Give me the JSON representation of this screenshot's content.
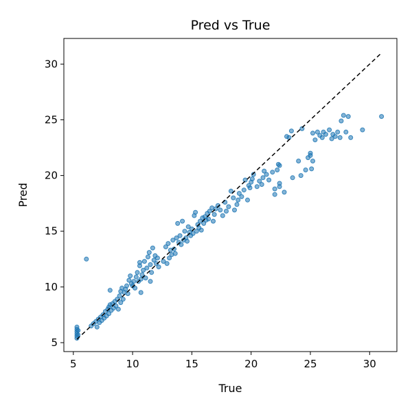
{
  "chart_data": {
    "type": "scatter",
    "title": "Pred vs True",
    "xlabel": "True",
    "ylabel": "Pred",
    "xlim": [
      4.2,
      32.3
    ],
    "ylim": [
      4.2,
      32.3
    ],
    "xticks": [
      5,
      10,
      15,
      20,
      25,
      30
    ],
    "yticks": [
      5,
      10,
      15,
      20,
      25,
      30
    ],
    "grid": false,
    "colors": {
      "points": "#1f77b4",
      "reference_line": "#000000"
    },
    "reference_line": {
      "style": "dashed",
      "from": [
        5.3,
        5.3
      ],
      "to": [
        31.0,
        31.0
      ]
    },
    "series": [
      {
        "points": [
          [
            5.3,
            5.4
          ],
          [
            5.3,
            5.6
          ],
          [
            5.3,
            5.8
          ],
          [
            5.3,
            6.0
          ],
          [
            5.3,
            6.2
          ],
          [
            5.3,
            6.4
          ],
          [
            5.4,
            5.7
          ],
          [
            5.4,
            6.1
          ],
          [
            6.1,
            12.5
          ],
          [
            6.5,
            6.5
          ],
          [
            6.7,
            6.7
          ],
          [
            6.9,
            6.9
          ],
          [
            7.0,
            6.4
          ],
          [
            7.1,
            7.1
          ],
          [
            7.2,
            6.8
          ],
          [
            7.3,
            7.3
          ],
          [
            7.4,
            7.0
          ],
          [
            7.5,
            7.5
          ],
          [
            7.6,
            7.2
          ],
          [
            7.7,
            7.8
          ],
          [
            7.8,
            7.4
          ],
          [
            7.9,
            8.0
          ],
          [
            8.0,
            8.2
          ],
          [
            8.0,
            7.6
          ],
          [
            8.1,
            8.4
          ],
          [
            8.1,
            9.7
          ],
          [
            8.2,
            7.9
          ],
          [
            8.3,
            8.5
          ],
          [
            8.4,
            8.1
          ],
          [
            8.5,
            8.7
          ],
          [
            8.6,
            8.3
          ],
          [
            8.7,
            8.9
          ],
          [
            8.8,
            8.0
          ],
          [
            8.9,
            9.2
          ],
          [
            9.0,
            8.6
          ],
          [
            9.0,
            9.6
          ],
          [
            9.1,
            9.9
          ],
          [
            9.2,
            8.9
          ],
          [
            9.3,
            9.5
          ],
          [
            9.4,
            9.8
          ],
          [
            9.5,
            10.1
          ],
          [
            9.6,
            9.4
          ],
          [
            9.7,
            10.6
          ],
          [
            9.8,
            11.0
          ],
          [
            9.9,
            10.3
          ],
          [
            10.0,
            10.1
          ],
          [
            10.1,
            10.5
          ],
          [
            10.2,
            9.9
          ],
          [
            10.3,
            10.9
          ],
          [
            10.4,
            11.3
          ],
          [
            10.5,
            10.5
          ],
          [
            10.6,
            11.9
          ],
          [
            10.6,
            12.2
          ],
          [
            10.7,
            9.5
          ],
          [
            10.7,
            10.7
          ],
          [
            10.8,
            11.1
          ],
          [
            10.9,
            11.5
          ],
          [
            11.0,
            12.3
          ],
          [
            11.1,
            10.8
          ],
          [
            11.2,
            11.7
          ],
          [
            11.3,
            12.7
          ],
          [
            11.4,
            13.1
          ],
          [
            11.5,
            10.5
          ],
          [
            11.5,
            12.0
          ],
          [
            11.6,
            11.3
          ],
          [
            11.7,
            13.5
          ],
          [
            11.8,
            12.4
          ],
          [
            11.9,
            12.8
          ],
          [
            12.0,
            12.1
          ],
          [
            12.1,
            12.6
          ],
          [
            12.2,
            11.8
          ],
          [
            12.6,
            12.3
          ],
          [
            12.8,
            13.6
          ],
          [
            12.9,
            12.1
          ],
          [
            13.0,
            13.9
          ],
          [
            13.1,
            12.6
          ],
          [
            13.2,
            13.3
          ],
          [
            13.3,
            12.9
          ],
          [
            13.4,
            14.2
          ],
          [
            13.5,
            13.4
          ],
          [
            13.6,
            13.0
          ],
          [
            13.7,
            14.4
          ],
          [
            13.8,
            15.7
          ],
          [
            13.9,
            14.0
          ],
          [
            14.0,
            14.6
          ],
          [
            14.1,
            13.8
          ],
          [
            14.2,
            15.9
          ],
          [
            14.3,
            14.2
          ],
          [
            14.4,
            15.0
          ],
          [
            14.5,
            14.4
          ],
          [
            14.6,
            14.1
          ],
          [
            14.7,
            15.4
          ],
          [
            14.8,
            14.9
          ],
          [
            14.9,
            14.6
          ],
          [
            15.0,
            15.2
          ],
          [
            15.1,
            14.8
          ],
          [
            15.2,
            16.4
          ],
          [
            15.3,
            16.7
          ],
          [
            15.4,
            15.0
          ],
          [
            15.5,
            15.6
          ],
          [
            15.6,
            15.3
          ],
          [
            15.7,
            15.9
          ],
          [
            15.8,
            15.1
          ],
          [
            15.9,
            16.2
          ],
          [
            16.0,
            15.7
          ],
          [
            16.1,
            16.3
          ],
          [
            16.2,
            16.0
          ],
          [
            16.3,
            16.6
          ],
          [
            16.4,
            16.1
          ],
          [
            16.5,
            16.8
          ],
          [
            16.7,
            17.1
          ],
          [
            16.8,
            15.9
          ],
          [
            16.9,
            16.5
          ],
          [
            17.0,
            17.0
          ],
          [
            17.2,
            17.3
          ],
          [
            17.4,
            16.9
          ],
          [
            17.6,
            16.4
          ],
          [
            17.8,
            17.6
          ],
          [
            17.9,
            16.8
          ],
          [
            18.1,
            17.2
          ],
          [
            18.3,
            18.6
          ],
          [
            18.5,
            18.0
          ],
          [
            18.6,
            16.9
          ],
          [
            18.8,
            17.4
          ],
          [
            18.9,
            17.8
          ],
          [
            19.0,
            18.4
          ],
          [
            19.2,
            18.1
          ],
          [
            19.4,
            18.7
          ],
          [
            19.5,
            19.6
          ],
          [
            19.7,
            17.8
          ],
          [
            19.8,
            19.1
          ],
          [
            19.9,
            18.9
          ],
          [
            20.0,
            19.4
          ],
          [
            20.1,
            19.7
          ],
          [
            20.2,
            20.1
          ],
          [
            20.5,
            19.0
          ],
          [
            20.7,
            19.5
          ],
          [
            20.9,
            19.2
          ],
          [
            21.0,
            19.8
          ],
          [
            21.1,
            20.4
          ],
          [
            21.3,
            20.1
          ],
          [
            21.5,
            19.6
          ],
          [
            21.8,
            20.3
          ],
          [
            22.0,
            18.3
          ],
          [
            22.0,
            18.8
          ],
          [
            22.2,
            20.5
          ],
          [
            22.4,
            20.9
          ],
          [
            22.3,
            21.0
          ],
          [
            22.4,
            19.3
          ],
          [
            22.4,
            19.0
          ],
          [
            22.8,
            18.5
          ],
          [
            23.0,
            23.5
          ],
          [
            23.2,
            23.4
          ],
          [
            23.4,
            24.0
          ],
          [
            23.5,
            19.8
          ],
          [
            24.0,
            21.3
          ],
          [
            24.2,
            20.0
          ],
          [
            24.3,
            24.2
          ],
          [
            24.6,
            20.5
          ],
          [
            24.8,
            21.6
          ],
          [
            25.0,
            22.0
          ],
          [
            25.0,
            21.8
          ],
          [
            25.2,
            21.3
          ],
          [
            25.1,
            20.6
          ],
          [
            25.2,
            23.8
          ],
          [
            25.4,
            23.2
          ],
          [
            25.6,
            23.9
          ],
          [
            25.8,
            23.6
          ],
          [
            26.0,
            23.4
          ],
          [
            26.1,
            23.9
          ],
          [
            26.3,
            23.7
          ],
          [
            26.6,
            24.1
          ],
          [
            26.8,
            23.3
          ],
          [
            26.9,
            23.7
          ],
          [
            27.1,
            23.5
          ],
          [
            27.3,
            23.9
          ],
          [
            27.5,
            23.4
          ],
          [
            27.6,
            24.9
          ],
          [
            27.8,
            25.4
          ],
          [
            28.0,
            23.9
          ],
          [
            28.2,
            25.3
          ],
          [
            28.4,
            23.4
          ],
          [
            29.4,
            24.1
          ],
          [
            31.0,
            25.3
          ]
        ]
      }
    ]
  }
}
